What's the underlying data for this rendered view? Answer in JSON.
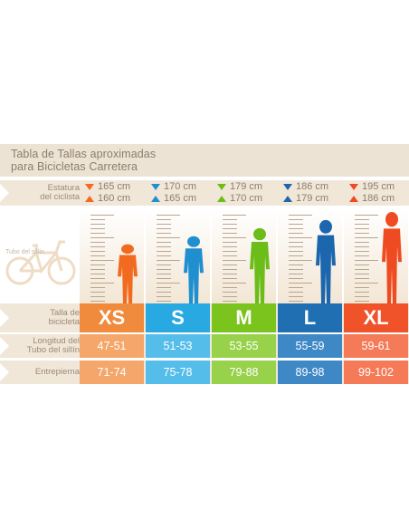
{
  "title": {
    "line1": "Tabla de Tallas aproximadas",
    "line2": "para Bicicletas Carretera"
  },
  "labels": {
    "height": [
      "Estatura",
      "del ciclista"
    ],
    "frame": [
      "Talla de",
      "bicicleta"
    ],
    "tube": [
      "Longitud del",
      "Tubo del sillín"
    ],
    "inseam": "Entrepierna",
    "bike_caption": "Tubo del sillín"
  },
  "sizes": [
    {
      "size": "XS",
      "max_height": "165 cm",
      "min_height": "160 cm",
      "tube": "47-51",
      "inseam": "71-74",
      "color": "#f08a3c",
      "light": "#f5a66a",
      "figure_color": "#f26a1f"
    },
    {
      "size": "S",
      "max_height": "170 cm",
      "min_height": "165 cm",
      "tube": "51-53",
      "inseam": "75-78",
      "color": "#29a9e1",
      "light": "#55bdea",
      "figure_color": "#1f8fd0"
    },
    {
      "size": "M",
      "max_height": "179 cm",
      "min_height": "170 cm",
      "tube": "53-55",
      "inseam": "79-88",
      "color": "#7bc41d",
      "light": "#97d24a",
      "figure_color": "#6cbd1a"
    },
    {
      "size": "L",
      "max_height": "186 cm",
      "min_height": "179 cm",
      "tube": "55-59",
      "inseam": "89-98",
      "color": "#1f6fb2",
      "light": "#3f88c6",
      "figure_color": "#1b66ad"
    },
    {
      "size": "XL",
      "max_height": "195 cm",
      "min_height": "186 cm",
      "tube": "59-61",
      "inseam": "99-102",
      "color": "#f0522a",
      "light": "#f47a58",
      "figure_color": "#ef4b22"
    }
  ],
  "colors": {
    "band": "#f1e7d9",
    "label_text": "#9a8977",
    "bike": "#efdcc4"
  }
}
